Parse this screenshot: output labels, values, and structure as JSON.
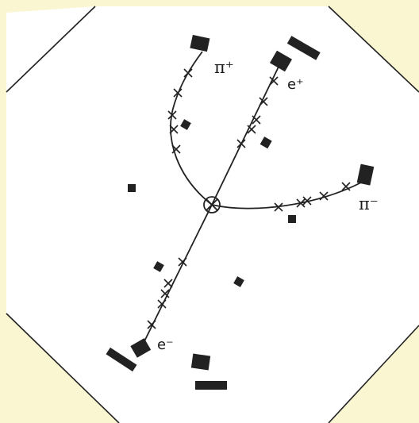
{
  "labels": {
    "pi_plus": "π⁺",
    "e_plus": "e⁺",
    "pi_minus": "π⁻",
    "e_minus": "e⁻"
  },
  "colors": {
    "background": "#faf6d2",
    "detector_area": "#ffffff",
    "ink": "#1a1a1a"
  }
}
